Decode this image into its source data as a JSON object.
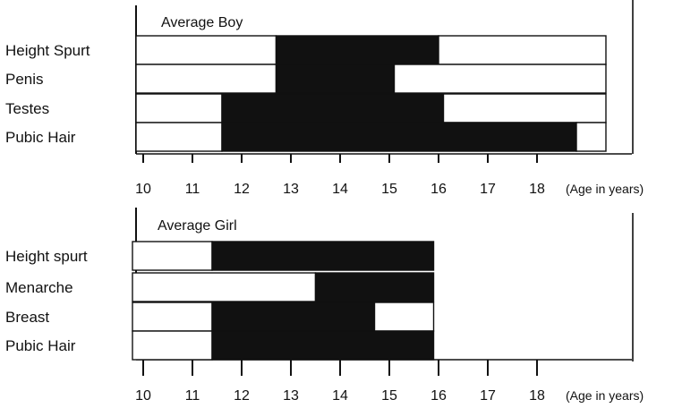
{
  "chart_data": [
    {
      "type": "bar",
      "title": "Average Boy",
      "categories": [
        "Height Spurt",
        "Penis",
        "Testes",
        "Pubic Hair"
      ],
      "series": [
        {
          "values": [
            12.7,
            12.7,
            11.6,
            11.6
          ]
        },
        {
          "values": [
            16.0,
            15.1,
            16.1,
            18.8
          ]
        },
        {
          "values": [
            19.4,
            19.4,
            19.4,
            19.4
          ]
        }
      ],
      "x_ticks": [
        10,
        11,
        12,
        13,
        14,
        15,
        16,
        17,
        18
      ],
      "xlabel": "(Age in years)",
      "xlim": [
        10,
        19.4
      ],
      "colors": {
        "outline": "#111111",
        "filled": "#111111",
        "open": "#ffffff"
      }
    },
    {
      "type": "bar",
      "title": "Average Girl",
      "categories": [
        "Height spurt",
        "Menarche",
        "Breast",
        "Pubic Hair"
      ],
      "series": [
        {
          "values": [
            11.4,
            13.5,
            11.4,
            11.4
          ]
        },
        {
          "values": [
            15.9,
            15.9,
            14.7,
            15.9
          ]
        },
        {
          "values": [
            15.9,
            15.9,
            15.9,
            15.9
          ]
        }
      ],
      "x_ticks": [
        10,
        11,
        12,
        13,
        14,
        15,
        16,
        17,
        18
      ],
      "xlabel": "(Age in years)",
      "xlim": [
        10,
        19.4
      ],
      "colors": {
        "outline": "#111111",
        "filled": "#111111",
        "open": "#ffffff"
      }
    }
  ]
}
